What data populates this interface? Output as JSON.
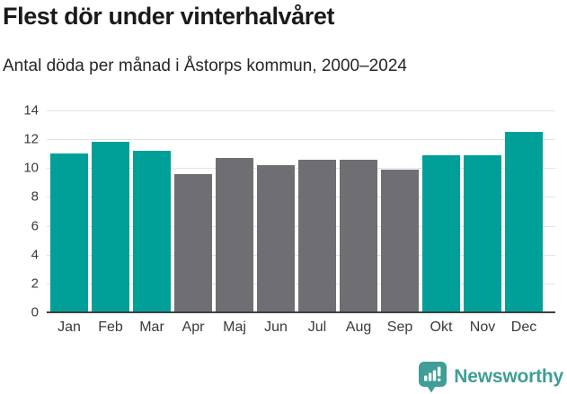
{
  "header": {
    "title": "Flest dör under vinterhalvåret",
    "subtitle": "Antal döda per månad i Åstorps kommun, 2000–2024"
  },
  "chart_data": {
    "type": "bar",
    "title": "Flest dör under vinterhalvåret",
    "subtitle": "Antal döda per månad i Åstorps kommun, 2000–2024",
    "categories": [
      "Jan",
      "Feb",
      "Mar",
      "Apr",
      "Maj",
      "Jun",
      "Jul",
      "Aug",
      "Sep",
      "Okt",
      "Nov",
      "Dec"
    ],
    "values": [
      11.0,
      11.8,
      11.2,
      9.6,
      10.7,
      10.2,
      10.6,
      10.6,
      9.9,
      10.9,
      10.9,
      12.5
    ],
    "bar_roles": [
      "highlight",
      "highlight",
      "highlight",
      "muted",
      "muted",
      "muted",
      "muted",
      "muted",
      "muted",
      "highlight",
      "highlight",
      "highlight"
    ],
    "xlabel": "",
    "ylabel": "",
    "ylim": [
      0,
      14
    ],
    "yticks": [
      0,
      2,
      4,
      6,
      8,
      10,
      12,
      14
    ],
    "grid": "horizontal",
    "legend": "none"
  },
  "colors": {
    "highlight_bar": "#00a099",
    "muted_bar": "#6e6e73",
    "gridline": "#e3e3e3",
    "axis_line": "#404040",
    "tick_text": "#3a3a3a",
    "title_text": "#1a1a1a",
    "subtitle_text": "#262626",
    "brand": "#3f9e96"
  },
  "footer": {
    "brand": "Newsworthy"
  },
  "icons": {
    "brand_icon": "newsworthy-speech-bubble-barchart-icon"
  }
}
